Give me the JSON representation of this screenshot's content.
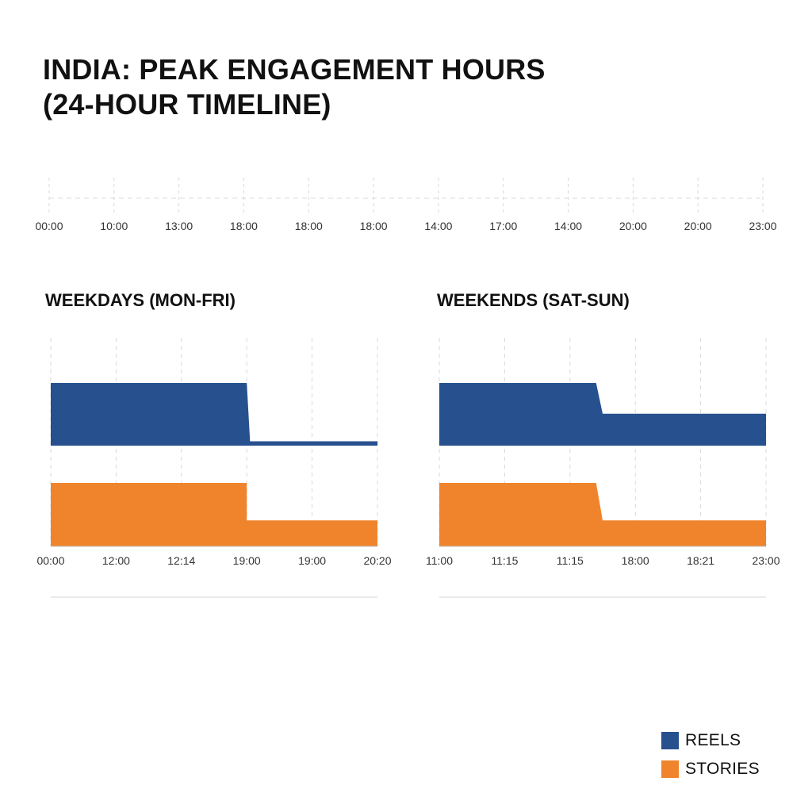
{
  "title": {
    "line1": "INDIA: PEAK ENGAGEMENT HOURS",
    "line2": "(24-HOUR TIMELINE)"
  },
  "colors": {
    "reels": "#27508f",
    "stories": "#f0842c",
    "grid": "#d9d9d9"
  },
  "chart_data": [
    {
      "type": "area",
      "title": "",
      "xlabel": "",
      "ylabel": "",
      "grid": false,
      "x_tick_labels": [
        "00:00",
        "10:00",
        "13:00",
        "18:00",
        "18:00",
        "18:00",
        "14:00",
        "17:00",
        "14:00",
        "20:00",
        "20:00",
        "23:00"
      ],
      "series": []
    },
    {
      "type": "area",
      "title": "WEEKDAYS (MON-FRI)",
      "xlabel": "",
      "ylabel": "",
      "grid": true,
      "x_tick_labels": [
        "00:00",
        "12:00",
        "12:14",
        "19:00",
        "19:00",
        "20:20"
      ],
      "series": [
        {
          "name": "REELS",
          "color": "#27508f",
          "x_index": [
            0,
            3,
            3.05,
            5
          ],
          "values": [
            1.0,
            1.0,
            0.07,
            0.07
          ]
        },
        {
          "name": "STORIES",
          "color": "#f0842c",
          "x_index": [
            0,
            3,
            3,
            5
          ],
          "values": [
            1.0,
            1.0,
            0.41,
            0.41
          ]
        }
      ]
    },
    {
      "type": "area",
      "title": "WEEKENDS (SAT-SUN)",
      "xlabel": "",
      "ylabel": "",
      "grid": true,
      "x_tick_labels": [
        "11:00",
        "11:15",
        "11:15",
        "18:00",
        "18:21",
        "23:00"
      ],
      "series": [
        {
          "name": "REELS",
          "color": "#27508f",
          "x_index": [
            0,
            2.4,
            2.5,
            5
          ],
          "values": [
            1.0,
            1.0,
            0.51,
            0.51
          ]
        },
        {
          "name": "STORIES",
          "color": "#f0842c",
          "x_index": [
            0,
            2.4,
            2.5,
            5
          ],
          "values": [
            1.0,
            1.0,
            0.41,
            0.41
          ]
        }
      ]
    }
  ],
  "legend": {
    "placement": "bottom-right",
    "items": [
      {
        "label": "REELS",
        "color": "#27508f"
      },
      {
        "label": "STORIES",
        "color": "#f0842c"
      }
    ]
  }
}
